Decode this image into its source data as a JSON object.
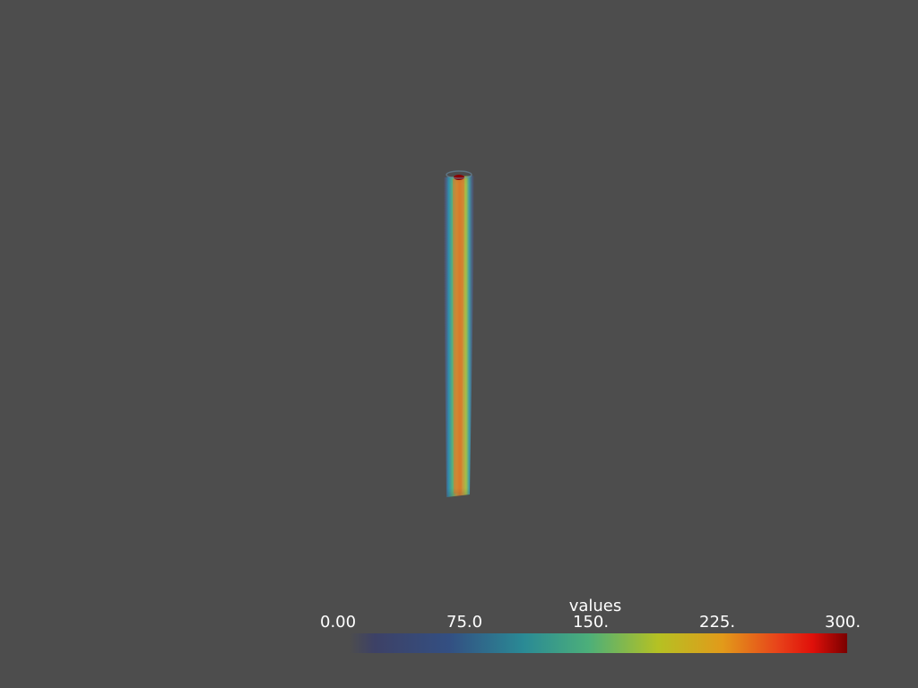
{
  "viewport": {
    "background": "#4d4d4d",
    "scalar_name": "values",
    "colormap": "jet",
    "colormap_stops": [
      "#3b3f6e",
      "#34588a",
      "#2e8f95",
      "#4fb07a",
      "#b5c123",
      "#e0a31d",
      "#e8651a",
      "#e51d0b",
      "#7a0000"
    ]
  },
  "colorbar": {
    "title": "values",
    "range": [
      0,
      300
    ],
    "ticks": [
      {
        "value": 0,
        "label": "0.00"
      },
      {
        "value": 75,
        "label": "75.0"
      },
      {
        "value": 150,
        "label": "150."
      },
      {
        "value": 225,
        "label": "225."
      },
      {
        "value": 300,
        "label": "300."
      }
    ]
  }
}
